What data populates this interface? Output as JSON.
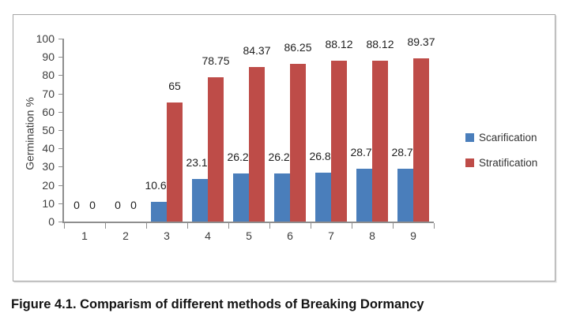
{
  "figure": {
    "caption": "Figure 4.1. Comparism of different methods of Breaking Dormancy"
  },
  "chart_data": {
    "type": "bar",
    "title": "",
    "categories": [
      "1",
      "2",
      "3",
      "4",
      "5",
      "6",
      "7",
      "8",
      "9"
    ],
    "series": [
      {
        "name": "Scarification",
        "color": "#4A7EBB",
        "values": [
          0,
          0,
          10.62,
          23.12,
          26.25,
          26.25,
          26.85,
          28.75,
          28.75
        ]
      },
      {
        "name": "Stratification",
        "color": "#BE4C48",
        "values": [
          0,
          0,
          65,
          78.75,
          84.37,
          86.25,
          88.12,
          88.12,
          89.37
        ]
      }
    ],
    "xlabel": "",
    "ylabel": "Germination %",
    "ylim": [
      0,
      100
    ],
    "ytick_step": 10,
    "data_labels": true,
    "grid": false,
    "legend_position": "right",
    "colors": {
      "axis": "#8E8E8E",
      "tick_label": "#3D3D3D",
      "data_label": "#1F1F1F",
      "panel_border": "#A6A6A6"
    }
  }
}
